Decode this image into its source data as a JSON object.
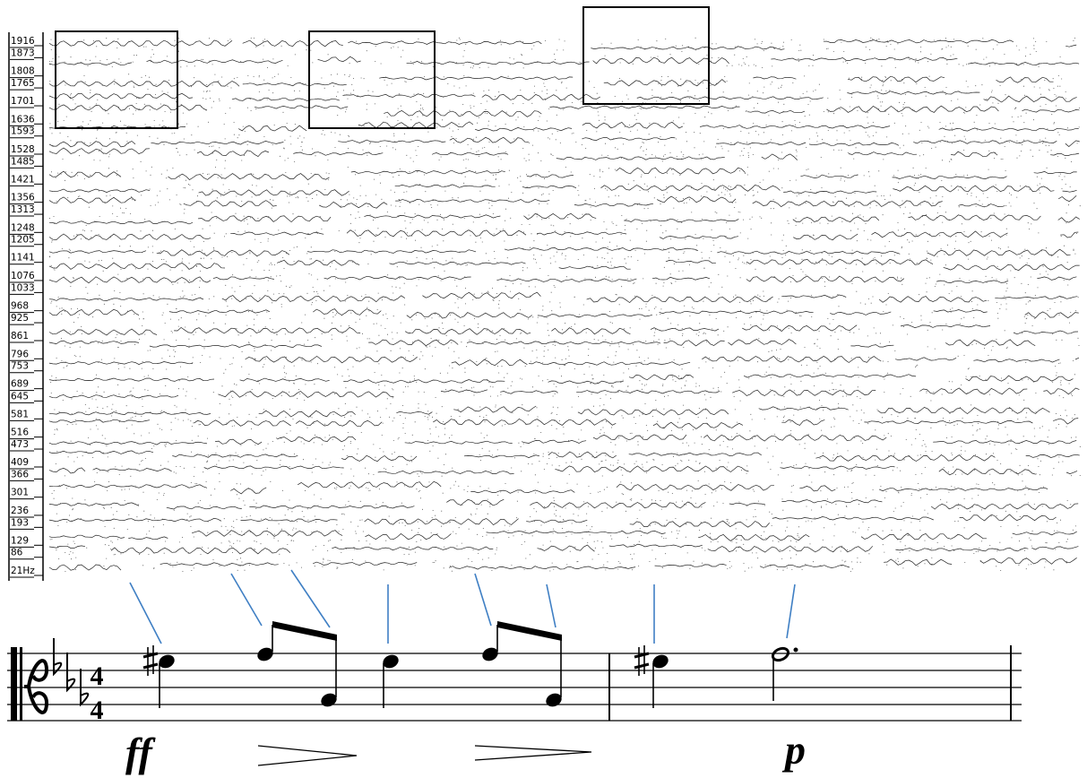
{
  "frequency_axis": {
    "labels": [
      "1916",
      "1873",
      "1808",
      "1765",
      "1701",
      "1636",
      "1593",
      "1528",
      "1485",
      "1421",
      "1356",
      "1313",
      "1248",
      "1205",
      "1141",
      "1076",
      "1033",
      "968",
      "925",
      "861",
      "796",
      "753",
      "689",
      "645",
      "581",
      "516",
      "473",
      "409",
      "366",
      "301",
      "236",
      "193",
      "129",
      "86",
      "21Hz"
    ]
  },
  "score": {
    "time_signature": [
      "4",
      "4"
    ],
    "dynamics": [
      "ff",
      "p"
    ]
  }
}
